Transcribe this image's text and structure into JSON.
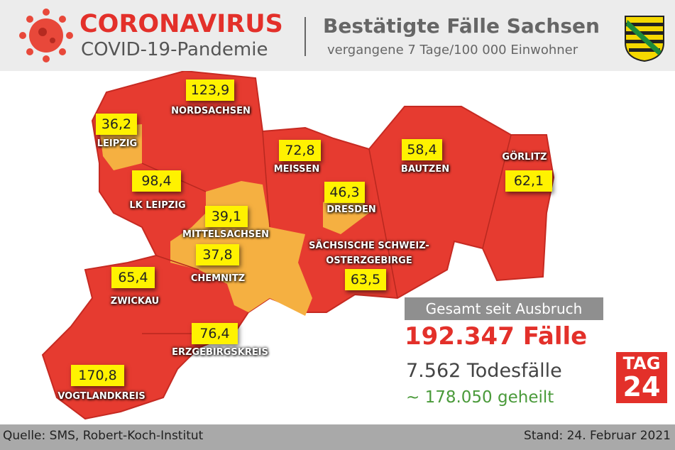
{
  "header": {
    "title": "CORONAVIRUS",
    "subtitle": "COVID-19-Pandemie",
    "heading": "Bestätigte Fälle Sachsen",
    "subheading": "vergangene 7 Tage/100 000 Einwohner"
  },
  "regions": [
    {
      "name": "NORDSACHSEN",
      "value": "123,9"
    },
    {
      "name": "LEIPZIG",
      "value": "36,2"
    },
    {
      "name": "MEISSEN",
      "value": "72,8"
    },
    {
      "name": "BAUTZEN",
      "value": "58,4"
    },
    {
      "name": "GÖRLITZ",
      "value": "62,1"
    },
    {
      "name": "LK LEIPZIG",
      "value": "98,4"
    },
    {
      "name": "DRESDEN",
      "value": "46,3"
    },
    {
      "name": "MITTELSACHSEN",
      "value": "39,1"
    },
    {
      "name": [
        "SÄCHSISCHE SCHWEIZ-",
        "OSTERZGEBIRGE"
      ],
      "value": "63,5"
    },
    {
      "name": "CHEMNITZ",
      "value": "37,8"
    },
    {
      "name": "ZWICKAU",
      "value": "65,4"
    },
    {
      "name": "ERZGEBIRGSKREIS",
      "value": "76,4"
    },
    {
      "name": "VOGTLANDKREIS",
      "value": "170,8"
    }
  ],
  "summary": {
    "label": "Gesamt seit Ausbruch",
    "cases": "192.347 Fälle",
    "deaths": "7.562 Todesfälle",
    "recovered": "~ 178.050 geheilt"
  },
  "logo": {
    "line1": "TAG",
    "line2": "24"
  },
  "footer": {
    "source": "Quelle: SMS, Robert-Koch-Institut",
    "date": "Stand: 24. Februar 2021"
  }
}
